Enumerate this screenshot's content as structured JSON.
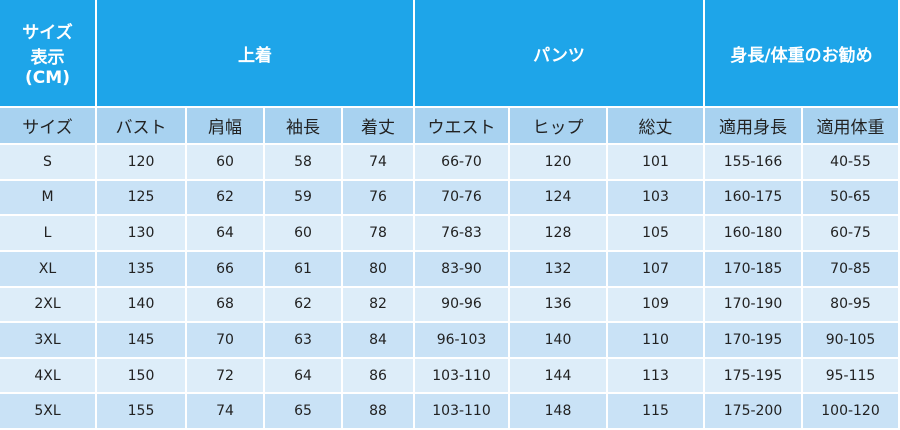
{
  "header": {
    "corner": [
      "サイズ",
      "表示",
      "(CM)"
    ],
    "groups": [
      {
        "label": "上着",
        "span": 4
      },
      {
        "label": "パンツ",
        "span": 3
      },
      {
        "label": "身長/体重のお勧め",
        "span": 2
      }
    ]
  },
  "table": {
    "columns": [
      "サイズ",
      "バスト",
      "肩幅",
      "袖長",
      "着丈",
      "ウエスト",
      "ヒップ",
      "総丈",
      "適用身長",
      "適用体重"
    ],
    "rows": [
      [
        "S",
        120,
        60,
        58,
        74,
        "66-70",
        120,
        101,
        "155-166",
        "40-55"
      ],
      [
        "M",
        125,
        62,
        59,
        76,
        "70-76",
        124,
        103,
        "160-175",
        "50-65"
      ],
      [
        "L",
        130,
        64,
        60,
        78,
        "76-83",
        128,
        105,
        "160-180",
        "60-75"
      ],
      [
        "XL",
        135,
        66,
        61,
        80,
        "83-90",
        132,
        107,
        "170-185",
        "70-85"
      ],
      [
        "2XL",
        140,
        68,
        62,
        82,
        "90-96",
        136,
        109,
        "170-190",
        "80-95"
      ],
      [
        "3XL",
        145,
        70,
        63,
        84,
        "96-103",
        140,
        110,
        "170-195",
        "90-105"
      ],
      [
        "4XL",
        150,
        72,
        64,
        86,
        "103-110",
        144,
        113,
        "175-195",
        "95-115"
      ],
      [
        "5XL",
        155,
        74,
        65,
        88,
        "103-110",
        148,
        115,
        "175-200",
        "100-120"
      ]
    ]
  }
}
